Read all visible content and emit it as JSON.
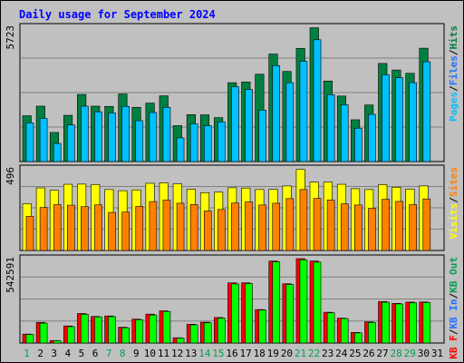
{
  "chart_data": {
    "type": "bar",
    "title": "Daily usage for September 2024",
    "categories": [
      "1",
      "2",
      "3",
      "4",
      "5",
      "6",
      "7",
      "8",
      "9",
      "10",
      "11",
      "12",
      "13",
      "14",
      "15",
      "16",
      "17",
      "18",
      "19",
      "20",
      "21",
      "22",
      "23",
      "24",
      "25",
      "26",
      "27",
      "28",
      "29",
      "30",
      "31"
    ],
    "weekend_days": [
      "1",
      "7",
      "8",
      "14",
      "15",
      "21",
      "22",
      "28",
      "29"
    ],
    "colors": {
      "background": "#c0c0c0",
      "title": "#0000ff",
      "pages": "#00c0ff",
      "files": "#2070ff",
      "hits": "#008040",
      "visits": "#ffff00",
      "sites": "#ff8000",
      "kbin": "#00ff00",
      "kbout": "#ff0000",
      "weekday_label": "#000000",
      "weekend_label": "#00a050"
    },
    "panels": [
      {
        "name": "hits-files-pages",
        "max_label": "5723",
        "ylim": [
          0,
          5723
        ],
        "legend": [
          "Pages",
          "/",
          "Files",
          "/",
          "Hits"
        ],
        "legend_colors": [
          "#00c0ff",
          "#000000",
          "#2070ff",
          "#000000",
          "#008040"
        ],
        "series": [
          {
            "name": "Hits",
            "color": "#008040",
            "values": [
              1950,
              2360,
              1240,
              1970,
              2860,
              2360,
              2350,
              2880,
              2310,
              2490,
              2800,
              1530,
              2000,
              1990,
              1870,
              3360,
              3390,
              3720,
              4580,
              3840,
              4820,
              5700,
              3430,
              2790,
              1780,
              2410,
              4180,
              3900,
              3760,
              4830,
              0
            ]
          },
          {
            "name": "Files",
            "color": "#00c0ff",
            "values": [
              1650,
              1840,
              770,
              1560,
              2360,
              2120,
              2070,
              2350,
              1740,
              2090,
              2310,
              1010,
              1610,
              1530,
              1690,
              3190,
              3070,
              2190,
              4090,
              3360,
              4270,
              5190,
              2850,
              2420,
              1420,
              2010,
              3700,
              3570,
              3360,
              4250,
              0
            ]
          }
        ]
      },
      {
        "name": "visits-sites",
        "max_label": "496",
        "ylim": [
          0,
          496
        ],
        "legend": [
          "Visits",
          "/",
          "Sites"
        ],
        "legend_colors": [
          "#ffff00",
          "#000000",
          "#ff8000"
        ],
        "series": [
          {
            "name": "Visits",
            "color": "#ffff00",
            "values": [
              284,
              380,
              365,
              402,
              403,
              400,
              370,
              363,
              368,
              408,
              411,
              405,
              372,
              351,
              354,
              381,
              379,
              370,
              371,
              392,
              492,
              415,
              416,
              402,
              375,
              370,
              400,
              384,
              373,
              392,
              0
            ]
          },
          {
            "name": "Sites",
            "color": "#ff8000",
            "values": [
              207,
              261,
              278,
              275,
              266,
              277,
              231,
              233,
              268,
              297,
              306,
              287,
              279,
              240,
              249,
              288,
              295,
              276,
              287,
              315,
              370,
              316,
              307,
              283,
              276,
              256,
              311,
              298,
              278,
              313,
              0
            ]
          }
        ]
      },
      {
        "name": "kbin-kbout",
        "max_label": "542591",
        "ylim": [
          0,
          542591
        ],
        "legend": [
          "KB F",
          "/",
          "KB In",
          "/",
          "KB Out"
        ],
        "legend_colors": [
          "#ff0000",
          "#000000",
          "#2070ff",
          "#000000",
          "#00a050"
        ],
        "series": [
          {
            "name": "KB Out",
            "color": "#ff0000",
            "values": [
              57600,
              133000,
              16200,
              110000,
              190000,
              171000,
              174000,
              102000,
              154000,
              186000,
              207000,
              34000,
              121000,
              134000,
              164000,
              387000,
              387000,
              215000,
              527000,
              381000,
              542591,
              527000,
              198000,
              160000,
              68000,
              136000,
              267000,
              255000,
              263000,
              264000,
              0
            ]
          },
          {
            "name": "KB In",
            "color": "#00ff00",
            "values": [
              55000,
              128000,
              15000,
              105000,
              185000,
              168000,
              170000,
              98000,
              150000,
              180000,
              203000,
              32000,
              117000,
              130000,
              160000,
              380000,
              382000,
              212000,
              522000,
              376000,
              535000,
              520000,
              194000,
              157000,
              65000,
              132000,
              262000,
              251000,
              258000,
              260000,
              0
            ]
          }
        ]
      }
    ]
  }
}
